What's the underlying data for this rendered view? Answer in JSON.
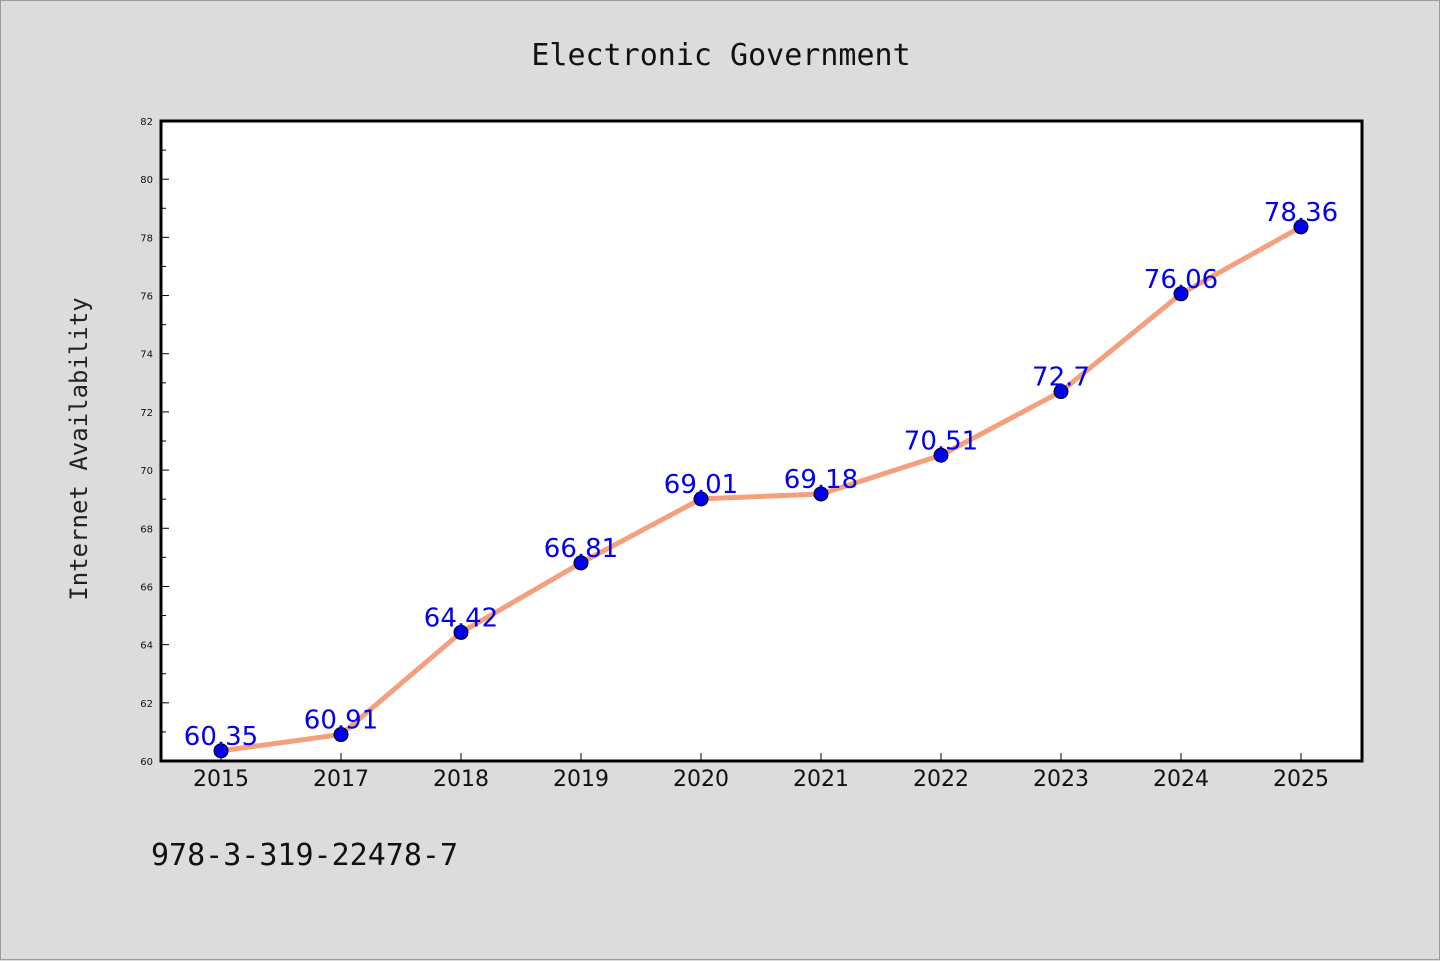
{
  "chart_data": {
    "type": "line",
    "title": "Electronic Government",
    "xlabel": "",
    "ylabel": "Internet Availability",
    "categories": [
      "2015",
      "2017",
      "2018",
      "2019",
      "2020",
      "2021",
      "2022",
      "2023",
      "2024",
      "2025"
    ],
    "series": [
      {
        "values": [
          60.35,
          60.91,
          64.42,
          66.81,
          69.01,
          69.18,
          70.51,
          72.7,
          76.06,
          78.36
        ],
        "data_labels": [
          "60.35",
          "60.91",
          "64.42",
          "66.81",
          "69.01",
          "69.18",
          "70.51",
          "72.7",
          "76.06",
          "78.36"
        ],
        "line_color": "#f4a07e",
        "marker_color": "#0000ee"
      }
    ],
    "ylim": [
      60,
      82
    ],
    "yticks": [
      "60",
      "62",
      "64",
      "66",
      "68",
      "70",
      "72",
      "74",
      "76",
      "78",
      "80",
      "82"
    ],
    "grid": false,
    "legend": "none",
    "label_color": "#0000ee"
  },
  "footer": {
    "isbn": "978-3-319-22478-7"
  }
}
